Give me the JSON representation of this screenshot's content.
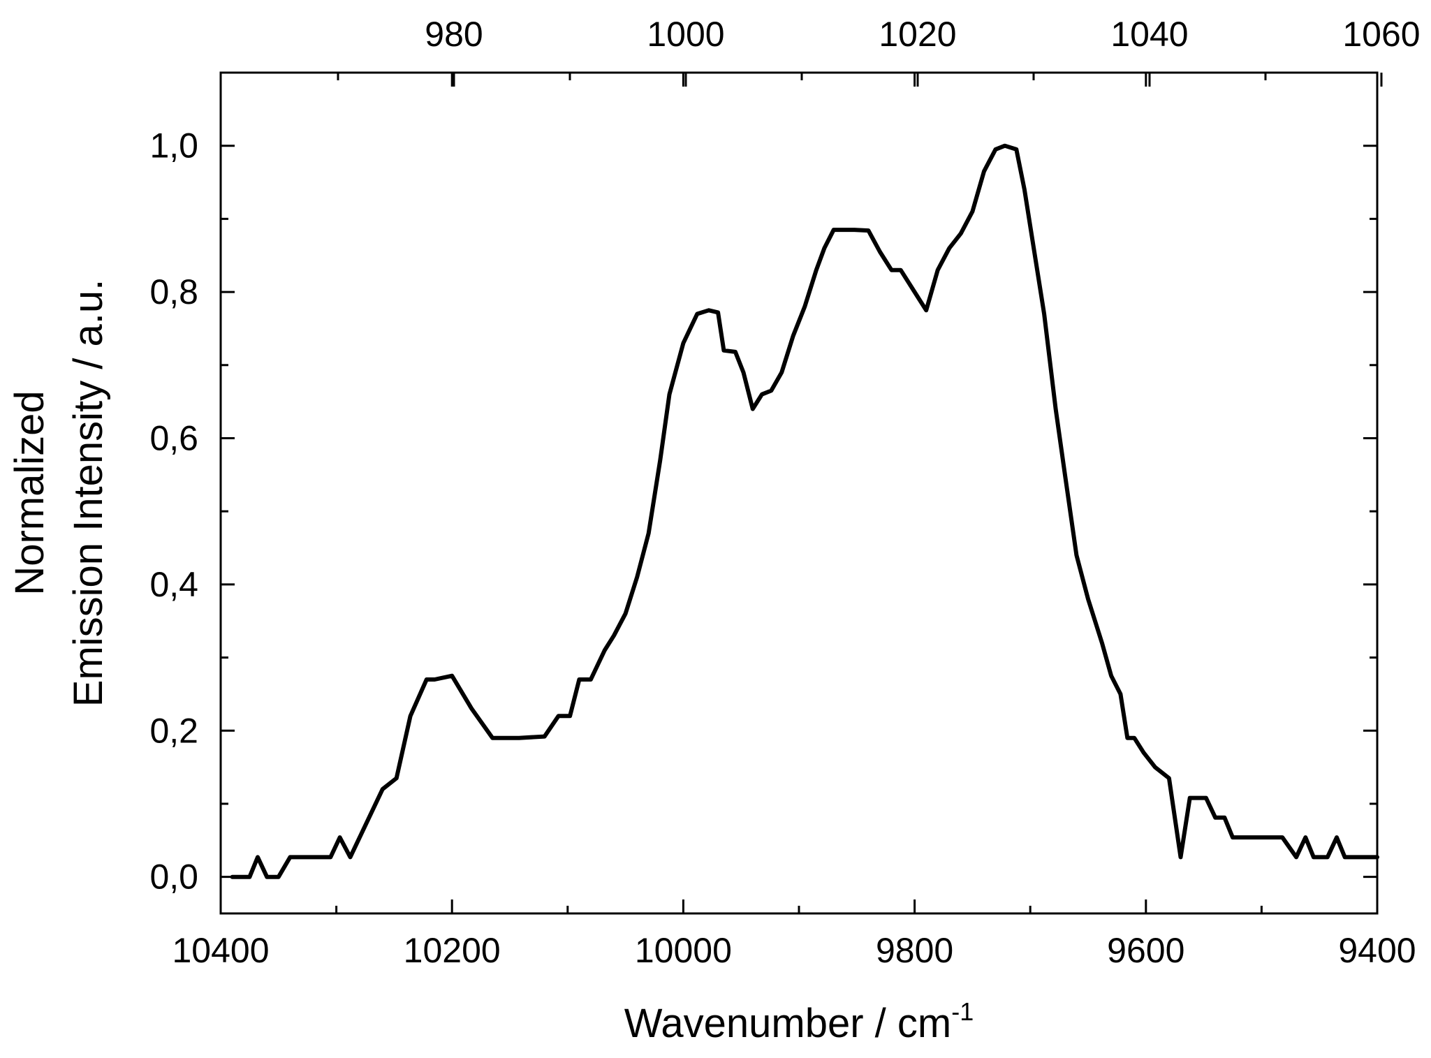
{
  "chart_data": {
    "type": "line",
    "xlabel": "Wavenumber / cm",
    "xlabel_superscript": "-1",
    "ylabel_lines": [
      "Normalized",
      "Emission Intensity / a.u."
    ],
    "xlim": [
      10400,
      9400
    ],
    "ylim": [
      -0.05,
      1.1
    ],
    "x_ticks": [
      "10400",
      "10200",
      "10000",
      "9800",
      "9600",
      "9400"
    ],
    "x_tick_values": [
      10400,
      10200,
      10000,
      9800,
      9600,
      9400
    ],
    "y_ticks": [
      "0,0",
      "0,2",
      "0,4",
      "0,6",
      "0,8",
      "1,0"
    ],
    "y_tick_values": [
      0,
      0.2,
      0.4,
      0.6,
      0.8,
      1.0
    ],
    "top_axis_ticks": [
      "980",
      "1000",
      "1020",
      "1040",
      "1060"
    ],
    "top_axis_tick_values": [
      980,
      1000,
      1020,
      1040,
      1060
    ],
    "grid": false,
    "line_color": "#000000",
    "series": [
      {
        "x": [
          10390,
          10375,
          10368,
          10360,
          10350,
          10340,
          10328,
          10318,
          10305,
          10297,
          10288,
          10260,
          10248,
          10236,
          10222,
          10215,
          10200,
          10183,
          10165,
          10142,
          10120,
          10108,
          10098,
          10090,
          10080,
          10068,
          10060,
          10050,
          10040,
          10030,
          10020,
          10012,
          10000,
          9988,
          9978,
          9970,
          9965,
          9955,
          9948,
          9940,
          9932,
          9924,
          9915,
          9905,
          9895,
          9885,
          9878,
          9870,
          9862,
          9852,
          9840,
          9830,
          9820,
          9812,
          9800,
          9790,
          9780,
          9770,
          9760,
          9750,
          9740,
          9730,
          9722,
          9712,
          9705,
          9698,
          9688,
          9678,
          9670,
          9660,
          9650,
          9638,
          9630,
          9622,
          9616,
          9610,
          9602,
          9592,
          9580,
          9570,
          9562,
          9555,
          9548,
          9540,
          9532,
          9525,
          9510,
          9482,
          9470,
          9462,
          9455,
          9443,
          9435,
          9428,
          9418,
          9400
        ],
        "y": [
          0.0,
          0.0,
          0.027,
          0.0,
          0.0,
          0.027,
          0.027,
          0.027,
          0.027,
          0.054,
          0.027,
          0.12,
          0.135,
          0.22,
          0.27,
          0.27,
          0.275,
          0.23,
          0.19,
          0.19,
          0.192,
          0.22,
          0.22,
          0.27,
          0.27,
          0.31,
          0.33,
          0.36,
          0.41,
          0.47,
          0.57,
          0.66,
          0.73,
          0.77,
          0.775,
          0.772,
          0.72,
          0.718,
          0.69,
          0.64,
          0.66,
          0.665,
          0.69,
          0.74,
          0.78,
          0.83,
          0.86,
          0.885,
          0.885,
          0.885,
          0.884,
          0.855,
          0.83,
          0.83,
          0.8,
          0.775,
          0.83,
          0.86,
          0.88,
          0.91,
          0.965,
          0.995,
          1.0,
          0.995,
          0.94,
          0.87,
          0.77,
          0.64,
          0.55,
          0.44,
          0.38,
          0.32,
          0.275,
          0.25,
          0.19,
          0.19,
          0.17,
          0.15,
          0.135,
          0.027,
          0.108,
          0.108,
          0.108,
          0.081,
          0.081,
          0.054,
          0.054,
          0.054,
          0.027,
          0.054,
          0.027,
          0.027,
          0.054,
          0.027,
          0.027,
          0.027
        ]
      }
    ]
  }
}
